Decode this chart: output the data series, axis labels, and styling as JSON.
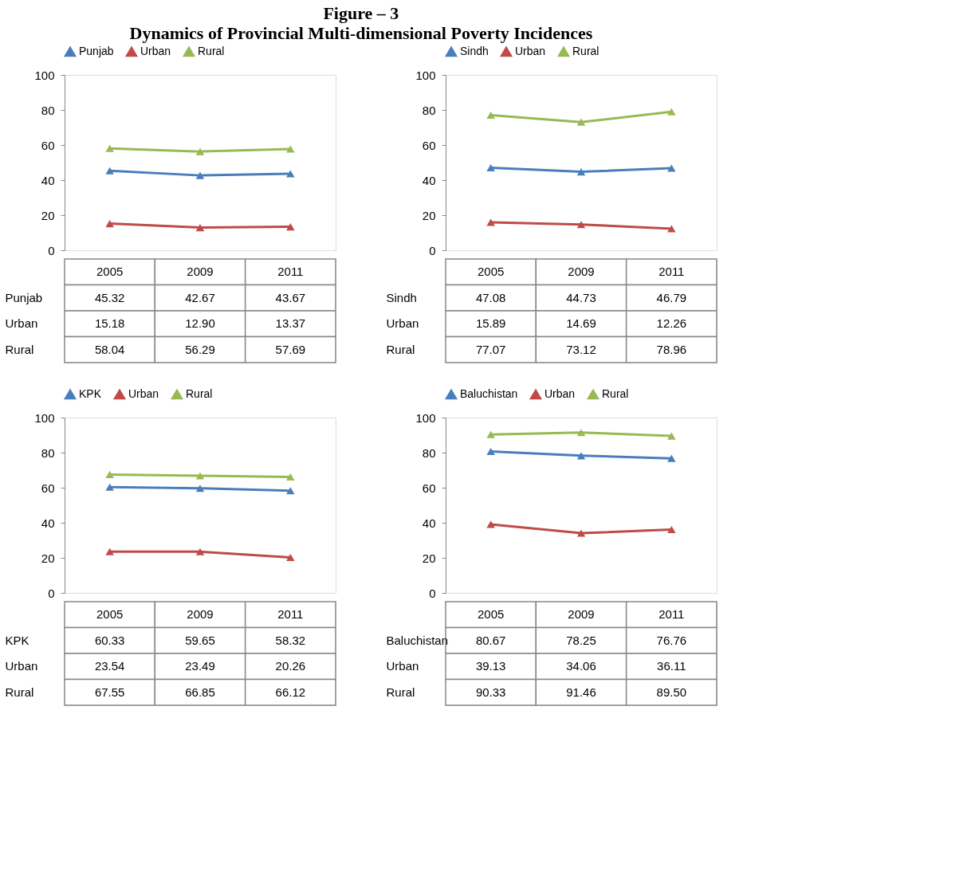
{
  "chart_data": [
    {
      "type": "line",
      "title": "Figure – 3",
      "subtitle": "Dynamics of Provincial Multi-dimensional Poverty Incidences",
      "categories": [
        "2005",
        "2009",
        "2011"
      ],
      "ylim": [
        0,
        100
      ],
      "yticks": [
        0,
        20,
        40,
        60,
        80,
        100
      ],
      "grid": false,
      "legend": "top",
      "marker": "triangle",
      "line_style": "solid",
      "series": [
        {
          "name": "Punjab",
          "color": "#4a7ebb",
          "values": [
            45.32,
            42.67,
            43.67
          ],
          "value_labels": [
            "45.32",
            "42.67",
            "43.67"
          ]
        },
        {
          "name": "Urban",
          "color": "#be4b48",
          "values": [
            15.18,
            12.9,
            13.37
          ],
          "value_labels": [
            "15.18",
            "12.90",
            "13.37"
          ]
        },
        {
          "name": "Rural",
          "color": "#98b954",
          "values": [
            58.04,
            56.29,
            57.69
          ],
          "value_labels": [
            "58.04",
            "56.29",
            "57.69"
          ]
        }
      ]
    },
    {
      "type": "line",
      "categories": [
        "2005",
        "2009",
        "2011"
      ],
      "ylim": [
        0,
        100
      ],
      "yticks": [
        0,
        20,
        40,
        60,
        80,
        100
      ],
      "grid": false,
      "legend": "top",
      "marker": "triangle",
      "line_style": "solid",
      "series": [
        {
          "name": "Sindh",
          "color": "#4a7ebb",
          "values": [
            47.08,
            44.73,
            46.79
          ],
          "value_labels": [
            "47.08",
            "44.73",
            "46.79"
          ]
        },
        {
          "name": "Urban",
          "color": "#be4b48",
          "values": [
            15.89,
            14.69,
            12.26
          ],
          "value_labels": [
            "15.89",
            "14.69",
            "12.26"
          ]
        },
        {
          "name": "Rural",
          "color": "#98b954",
          "values": [
            77.07,
            73.12,
            78.96
          ],
          "value_labels": [
            "77.07",
            "73.12",
            "78.96"
          ]
        }
      ]
    },
    {
      "type": "line",
      "categories": [
        "2005",
        "2009",
        "2011"
      ],
      "ylim": [
        0,
        100
      ],
      "yticks": [
        0,
        20,
        40,
        60,
        80,
        100
      ],
      "grid": false,
      "legend": "top",
      "marker": "triangle",
      "line_style": "solid",
      "series": [
        {
          "name": "KPK",
          "color": "#4a7ebb",
          "values": [
            60.33,
            59.65,
            58.32
          ],
          "value_labels": [
            "60.33",
            "59.65",
            "58.32"
          ]
        },
        {
          "name": "Urban",
          "color": "#be4b48",
          "values": [
            23.54,
            23.49,
            20.26
          ],
          "value_labels": [
            "23.54",
            "23.49",
            "20.26"
          ]
        },
        {
          "name": "Rural",
          "color": "#98b954",
          "values": [
            67.55,
            66.85,
            66.12
          ],
          "value_labels": [
            "67.55",
            "66.85",
            "66.12"
          ]
        }
      ]
    },
    {
      "type": "line",
      "categories": [
        "2005",
        "2009",
        "2011"
      ],
      "ylim": [
        0,
        100
      ],
      "yticks": [
        0,
        20,
        40,
        60,
        80,
        100
      ],
      "grid": false,
      "legend": "top",
      "marker": "triangle",
      "line_style": "solid",
      "series": [
        {
          "name": "Baluchistan",
          "color": "#4a7ebb",
          "values": [
            80.67,
            78.25,
            76.76
          ],
          "value_labels": [
            "80.67",
            "78.25",
            "76.76"
          ]
        },
        {
          "name": "Urban",
          "color": "#be4b48",
          "values": [
            39.13,
            34.06,
            36.11
          ],
          "value_labels": [
            "39.13",
            "34.06",
            "36.11"
          ]
        },
        {
          "name": "Rural",
          "color": "#98b954",
          "values": [
            90.33,
            91.46,
            89.5
          ],
          "value_labels": [
            "90.33",
            "91.46",
            "89.50"
          ]
        }
      ]
    }
  ]
}
